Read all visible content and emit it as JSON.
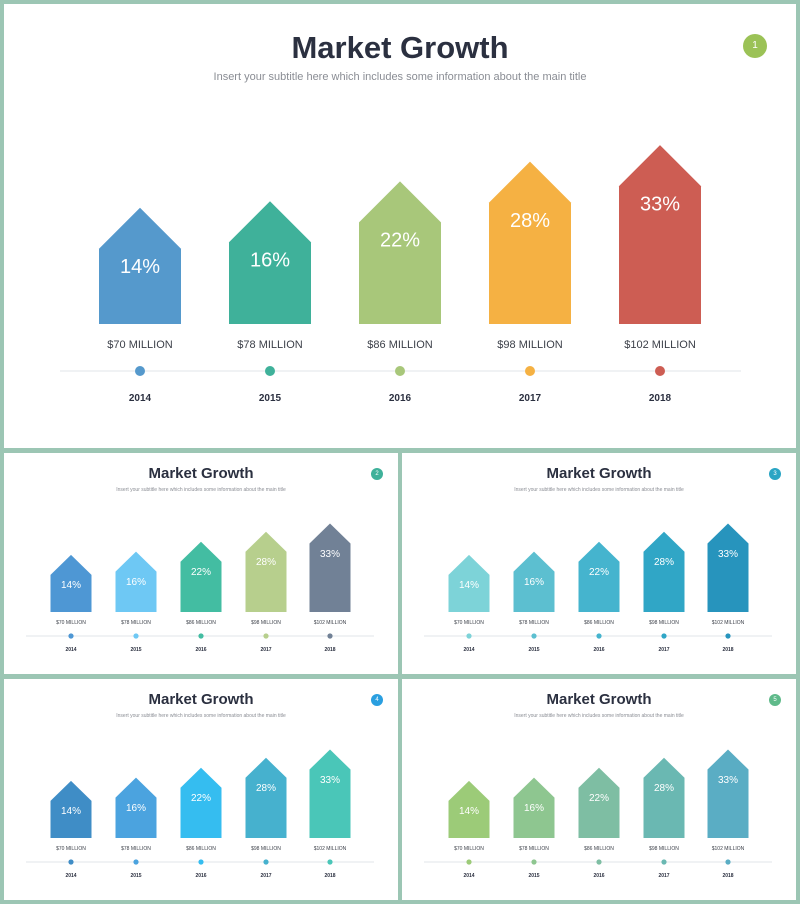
{
  "slides": [
    {
      "title": "Market Growth",
      "subtitle": "Insert your subtitle here which includes some information about the main title",
      "page_number": "1",
      "badge_color": "#9bc256",
      "colors": [
        "#5599cc",
        "#3fb19a",
        "#a8c77a",
        "#f5b143",
        "#cd5d53"
      ],
      "chart_data": {
        "type": "bar",
        "categories": [
          "2014",
          "2015",
          "2016",
          "2017",
          "2018"
        ],
        "values": [
          14,
          16,
          22,
          28,
          33
        ],
        "value_labels": [
          "14%",
          "16%",
          "22%",
          "28%",
          "33%"
        ],
        "amount_labels": [
          "$70 MILLION",
          "$78 MILLION",
          "$86 MILLION",
          "$98 MILLION",
          "$102 MILLION"
        ],
        "title": "",
        "xlabel": "",
        "ylabel": ""
      }
    },
    {
      "title": "Market Growth",
      "subtitle": "Insert your subtitle here which includes some information about the main title",
      "page_number": "2",
      "badge_color": "#3fb19a",
      "colors": [
        "#4e97d4",
        "#6ec8f4",
        "#43bda2",
        "#b7cf8d",
        "#718196"
      ],
      "chart_data": {
        "type": "bar",
        "categories": [
          "2014",
          "2015",
          "2016",
          "2017",
          "2018"
        ],
        "values": [
          14,
          16,
          22,
          28,
          33
        ],
        "value_labels": [
          "14%",
          "16%",
          "22%",
          "28%",
          "33%"
        ],
        "amount_labels": [
          "$70 MILLION",
          "$78 MILLION",
          "$86 MILLION",
          "$98 MILLION",
          "$102 MILLION"
        ],
        "title": "",
        "xlabel": "",
        "ylabel": ""
      }
    },
    {
      "title": "Market Growth",
      "subtitle": "Insert your subtitle here which includes some information about the main title",
      "page_number": "3",
      "badge_color": "#2aa5c4",
      "colors": [
        "#7dd3d8",
        "#5cbfd0",
        "#45b4ce",
        "#30a6c6",
        "#2794bd"
      ],
      "chart_data": {
        "type": "bar",
        "categories": [
          "2014",
          "2015",
          "2016",
          "2017",
          "2018"
        ],
        "values": [
          14,
          16,
          22,
          28,
          33
        ],
        "value_labels": [
          "14%",
          "16%",
          "22%",
          "28%",
          "33%"
        ],
        "amount_labels": [
          "$70 MILLION",
          "$78 MILLION",
          "$86 MILLION",
          "$98 MILLION",
          "$102 MILLION"
        ],
        "title": "",
        "xlabel": "",
        "ylabel": ""
      }
    },
    {
      "title": "Market Growth",
      "subtitle": "Insert your subtitle here which includes some information about the main title",
      "page_number": "4",
      "badge_color": "#2a9fe0",
      "colors": [
        "#3f8dc6",
        "#4ba3df",
        "#35bdf0",
        "#46b1ce",
        "#4ac6b8"
      ],
      "chart_data": {
        "type": "bar",
        "categories": [
          "2014",
          "2015",
          "2016",
          "2017",
          "2018"
        ],
        "values": [
          14,
          16,
          22,
          28,
          33
        ],
        "value_labels": [
          "14%",
          "16%",
          "22%",
          "28%",
          "33%"
        ],
        "amount_labels": [
          "$70 MILLION",
          "$78 MILLION",
          "$86 MILLION",
          "$98 MILLION",
          "$102 MILLION"
        ],
        "title": "",
        "xlabel": "",
        "ylabel": ""
      }
    },
    {
      "title": "Market Growth",
      "subtitle": "Insert your subtitle here which includes some information about the main title",
      "page_number": "5",
      "badge_color": "#5fba8a",
      "colors": [
        "#9ccb78",
        "#8ec690",
        "#7ebea3",
        "#6ab8b2",
        "#5aadc4"
      ],
      "chart_data": {
        "type": "bar",
        "categories": [
          "2014",
          "2015",
          "2016",
          "2017",
          "2018"
        ],
        "values": [
          14,
          16,
          22,
          28,
          33
        ],
        "value_labels": [
          "14%",
          "16%",
          "22%",
          "28%",
          "33%"
        ],
        "amount_labels": [
          "$70 MILLION",
          "$78 MILLION",
          "$86 MILLION",
          "$98 MILLION",
          "$102 MILLION"
        ],
        "title": "",
        "xlabel": "",
        "ylabel": ""
      }
    }
  ]
}
